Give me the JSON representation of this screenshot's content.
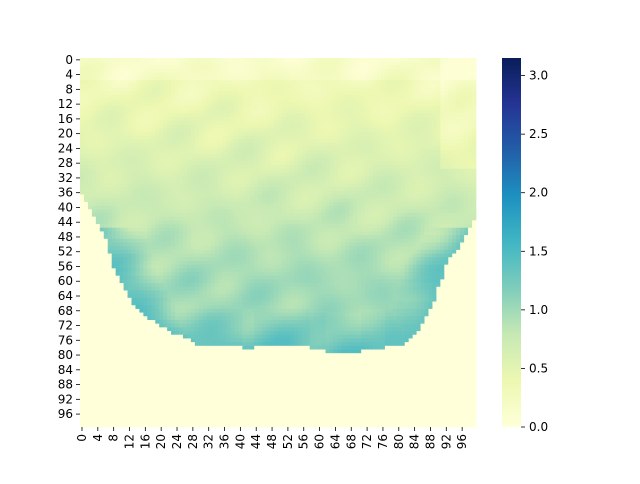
{
  "chart_data": {
    "type": "heatmap",
    "title": "",
    "xlabel": "",
    "ylabel": "",
    "grid_size": 100,
    "x_ticks": [
      0,
      4,
      8,
      12,
      16,
      20,
      24,
      28,
      32,
      36,
      40,
      44,
      48,
      52,
      56,
      60,
      64,
      68,
      72,
      76,
      80,
      84,
      88,
      92,
      96
    ],
    "y_ticks": [
      0,
      4,
      8,
      12,
      16,
      20,
      24,
      28,
      32,
      36,
      40,
      44,
      48,
      52,
      56,
      60,
      64,
      68,
      72,
      76,
      80,
      84,
      88,
      92,
      96
    ],
    "x_tick_labels": [
      "0",
      "4",
      "8",
      "12",
      "16",
      "20",
      "24",
      "28",
      "32",
      "36",
      "40",
      "44",
      "48",
      "52",
      "56",
      "60",
      "64",
      "68",
      "72",
      "76",
      "80",
      "84",
      "88",
      "92",
      "96"
    ],
    "y_tick_labels": [
      "0",
      "4",
      "8",
      "12",
      "16",
      "20",
      "24",
      "28",
      "32",
      "36",
      "40",
      "44",
      "48",
      "52",
      "56",
      "60",
      "64",
      "68",
      "72",
      "76",
      "80",
      "84",
      "88",
      "92",
      "96"
    ],
    "value_range": [
      0.0,
      3.15
    ],
    "colormap": "YlGnBu",
    "colormap_stops": [
      "#ffffd9",
      "#edf8b1",
      "#c7e9b4",
      "#7fcdbb",
      "#41b6c4",
      "#1d91c0",
      "#225ea8",
      "#253494",
      "#081d58"
    ],
    "colorbar": {
      "ticks": [
        0.0,
        0.5,
        1.0,
        1.5,
        2.0,
        2.5,
        3.0
      ],
      "labels": [
        "0.0",
        "0.5",
        "1.0",
        "1.5",
        "2.0",
        "2.5",
        "3.0"
      ]
    },
    "region_note": "values are ~0 outside a bowl-shaped region; inside, values range ~0.2 (top) to ~1.4 (lower flanks)",
    "bowl_left_edge": [
      [
        0,
        0
      ],
      [
        36,
        0
      ],
      [
        38,
        1
      ],
      [
        40,
        2
      ],
      [
        42,
        3
      ],
      [
        44,
        4
      ],
      [
        46,
        5
      ],
      [
        48,
        6
      ],
      [
        50,
        7
      ],
      [
        52,
        7
      ],
      [
        54,
        8
      ],
      [
        56,
        8
      ],
      [
        58,
        9
      ],
      [
        60,
        10
      ],
      [
        62,
        11
      ],
      [
        64,
        12
      ],
      [
        66,
        13
      ],
      [
        68,
        15
      ],
      [
        70,
        17
      ],
      [
        72,
        20
      ],
      [
        74,
        23
      ],
      [
        76,
        28
      ],
      [
        78,
        30
      ]
    ],
    "bowl_right_edge": [
      [
        0,
        99
      ],
      [
        40,
        99
      ],
      [
        42,
        99
      ],
      [
        44,
        98
      ],
      [
        46,
        97
      ],
      [
        48,
        96
      ],
      [
        50,
        95
      ],
      [
        52,
        94
      ],
      [
        54,
        92
      ],
      [
        56,
        91
      ],
      [
        58,
        91
      ],
      [
        60,
        90
      ],
      [
        62,
        89
      ],
      [
        64,
        89
      ],
      [
        66,
        88
      ],
      [
        68,
        87
      ],
      [
        70,
        86
      ],
      [
        72,
        85
      ],
      [
        74,
        84
      ],
      [
        76,
        82
      ],
      [
        78,
        80
      ]
    ],
    "bowl_bottom": [
      [
        28,
        77
      ],
      [
        40,
        77
      ],
      [
        42,
        78
      ],
      [
        44,
        77
      ],
      [
        52,
        77
      ],
      [
        56,
        77
      ],
      [
        60,
        78
      ],
      [
        64,
        79
      ],
      [
        68,
        79
      ],
      [
        72,
        78
      ],
      [
        80,
        77
      ]
    ]
  }
}
